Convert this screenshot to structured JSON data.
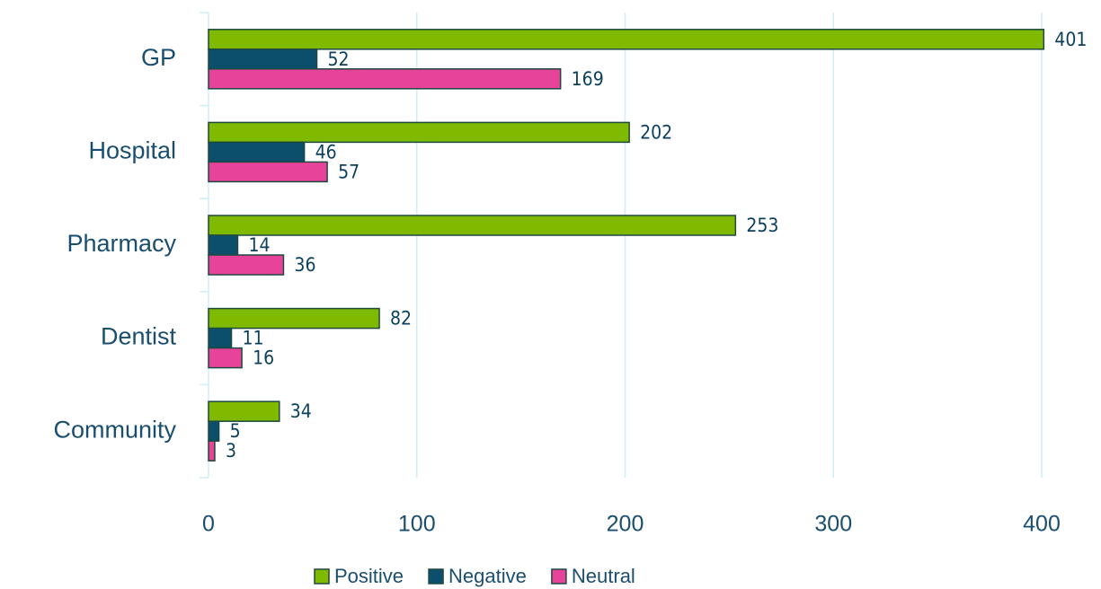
{
  "chart_data": {
    "type": "hbar",
    "categories": [
      "GP",
      "Hospital",
      "Pharmacy",
      "Dentist",
      "Community"
    ],
    "series": [
      {
        "name": "Positive",
        "color": "#7fba00",
        "values": [
          401,
          202,
          253,
          82,
          34
        ]
      },
      {
        "name": "Negative",
        "color": "#0b4f6c",
        "values": [
          52,
          46,
          14,
          11,
          5
        ]
      },
      {
        "name": "Neutral",
        "color": "#e8439b",
        "values": [
          169,
          57,
          36,
          16,
          3
        ]
      }
    ],
    "xlim": [
      0,
      400
    ],
    "xticks": [
      0,
      100,
      200,
      300,
      400
    ],
    "grid": true,
    "legend": "bottom"
  }
}
